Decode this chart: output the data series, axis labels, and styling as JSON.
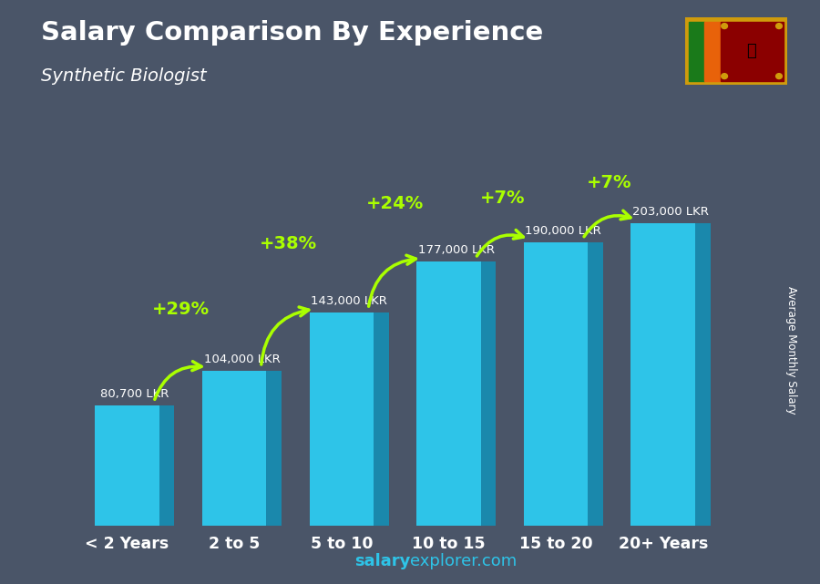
{
  "title": "Salary Comparison By Experience",
  "subtitle": "Synthetic Biologist",
  "categories": [
    "< 2 Years",
    "2 to 5",
    "5 to 10",
    "10 to 15",
    "15 to 20",
    "20+ Years"
  ],
  "values": [
    80700,
    104000,
    143000,
    177000,
    190000,
    203000
  ],
  "labels": [
    "80,700 LKR",
    "104,000 LKR",
    "143,000 LKR",
    "177,000 LKR",
    "190,000 LKR",
    "203,000 LKR"
  ],
  "pct_changes": [
    "+29%",
    "+38%",
    "+24%",
    "+7%",
    "+7%"
  ],
  "bar_face_color": "#2EC4E8",
  "bar_side_color": "#1A88AC",
  "bar_top_color": "#5DD6F0",
  "bg_color": "#4a5568",
  "title_color": "#FFFFFF",
  "label_color": "#FFFFFF",
  "pct_color": "#AAFF00",
  "footer_salary": "salary",
  "footer_explorer": "explorer.com",
  "ylabel_text": "Average Monthly Salary",
  "ylim_max": 235000,
  "bar_width": 0.6,
  "side_depth": 0.14,
  "figsize": [
    9.0,
    6.41
  ]
}
